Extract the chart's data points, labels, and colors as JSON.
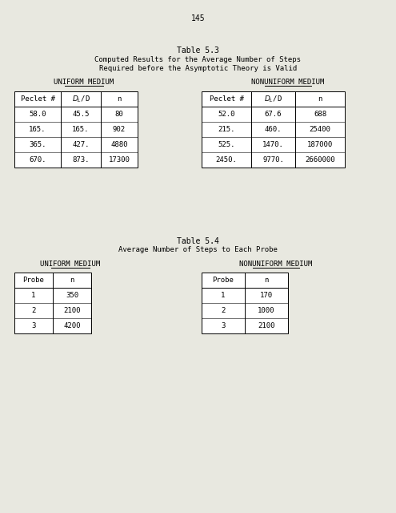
{
  "page_number": "145",
  "bg_color": "#e8e8e0",
  "table53": {
    "title_line1": "Table 5.3",
    "title_line2": "Computed Results for the Average Number of Steps",
    "title_line3": "Required before the Asymptotic Theory is Valid",
    "uniform_label": "UNIFORM MEDIUM",
    "nonuniform_label": "NONUNIFORM MEDIUM",
    "uniform_headers": [
      "Peclet #",
      "D_L/D",
      "n"
    ],
    "uniform_data": [
      [
        "58.0",
        "45.5",
        "80"
      ],
      [
        "165.",
        "165.",
        "902"
      ],
      [
        "365.",
        "427.",
        "4880"
      ],
      [
        "670.",
        "873.",
        "17300"
      ]
    ],
    "nonuniform_headers": [
      "Peclet #",
      "D_L/D",
      "n"
    ],
    "nonuniform_data": [
      [
        "52.0",
        "67.6",
        "688"
      ],
      [
        "215.",
        "460.",
        "25400"
      ],
      [
        "525.",
        "1470.",
        "187000"
      ],
      [
        "2450.",
        "9770.",
        "2660000"
      ]
    ]
  },
  "table54": {
    "title_line1": "Table 5.4",
    "title_line2": "Average Number of Steps to Each Probe",
    "uniform_label": "UNIFORM MEDIUM",
    "nonuniform_label": "NONUNIFORM MEDIUM",
    "uniform_headers": [
      "Probe",
      "n"
    ],
    "uniform_data": [
      [
        "1",
        "350"
      ],
      [
        "2",
        "2100"
      ],
      [
        "3",
        "4200"
      ]
    ],
    "nonuniform_headers": [
      "Probe",
      "n"
    ],
    "nonuniform_data": [
      [
        "1",
        "170"
      ],
      [
        "2",
        "1000"
      ],
      [
        "3",
        "2100"
      ]
    ]
  }
}
